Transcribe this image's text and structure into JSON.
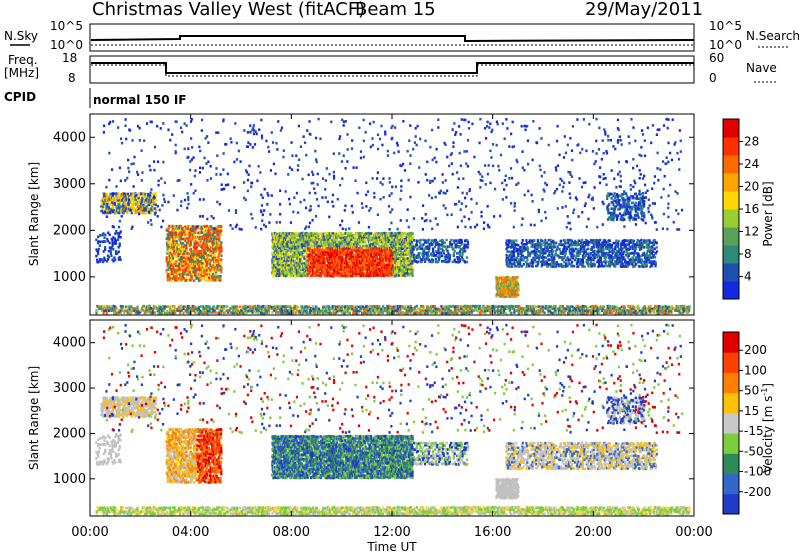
{
  "header": {
    "station": "Christmas Valley West (fitACF)",
    "beam": "Beam 15",
    "date": "29/May/2011"
  },
  "top_panels": {
    "nsky_label": "N.Sky",
    "nsearch_label": "N.Search",
    "count_ticks": [
      "10^5",
      "10^0"
    ],
    "freq_label_1": "Freq.",
    "freq_label_2": "[MHz]",
    "freq_ticks": [
      "18",
      "8"
    ],
    "nave_label": "Nave",
    "nave_ticks": [
      "60",
      "0"
    ],
    "cpid_label": "CPID",
    "cpid_value": "normal 150 IF"
  },
  "chart_data": [
    {
      "type": "heatmap",
      "parameter": "Power",
      "ylabel": "Slant Range [km]",
      "xlabel": "Time UT",
      "x_ticks": [
        "00:00",
        "04:00",
        "08:00",
        "12:00",
        "16:00",
        "20:00",
        "00:00"
      ],
      "x_range_hours": [
        0,
        24
      ],
      "y_ticks": [
        1000,
        2000,
        3000,
        4000
      ],
      "y_range_km": [
        180,
        4500
      ],
      "colorbar": {
        "label": "Power [dB]",
        "ticks": [
          4,
          8,
          12,
          16,
          20,
          24,
          28
        ],
        "colors": [
          "#1428e0",
          "#1e50b4",
          "#2e8a78",
          "#5aa05a",
          "#9acd32",
          "#ffd700",
          "#ffa500",
          "#ff6a00",
          "#ff3000",
          "#e00000"
        ]
      }
    },
    {
      "type": "heatmap",
      "parameter": "Velocity",
      "ylabel": "Slant Range [km]",
      "xlabel": "Time UT",
      "x_ticks": [
        "00:00",
        "04:00",
        "08:00",
        "12:00",
        "16:00",
        "20:00",
        "00:00"
      ],
      "x_range_hours": [
        0,
        24
      ],
      "y_ticks": [
        1000,
        2000,
        3000,
        4000
      ],
      "y_range_km": [
        180,
        4500
      ],
      "colorbar": {
        "label": "Velocity [m s-1]",
        "label_main": "Velocity [m s",
        "label_sup": "-1",
        "label_end": "]",
        "ticks": [
          "200",
          "100",
          "50",
          "15",
          "-15",
          "-50",
          "-100",
          "-200"
        ],
        "colors": [
          "#1e3cc8",
          "#3266c8",
          "#2e8b57",
          "#7ccd3c",
          "#c8c8c8",
          "#ffc000",
          "#ff8000",
          "#ff4000",
          "#e00000"
        ]
      }
    }
  ],
  "series_colors": {
    "gray": "#c0c0c0",
    "ground": "#7ccd3c",
    "yellow": "#ffd24a"
  }
}
